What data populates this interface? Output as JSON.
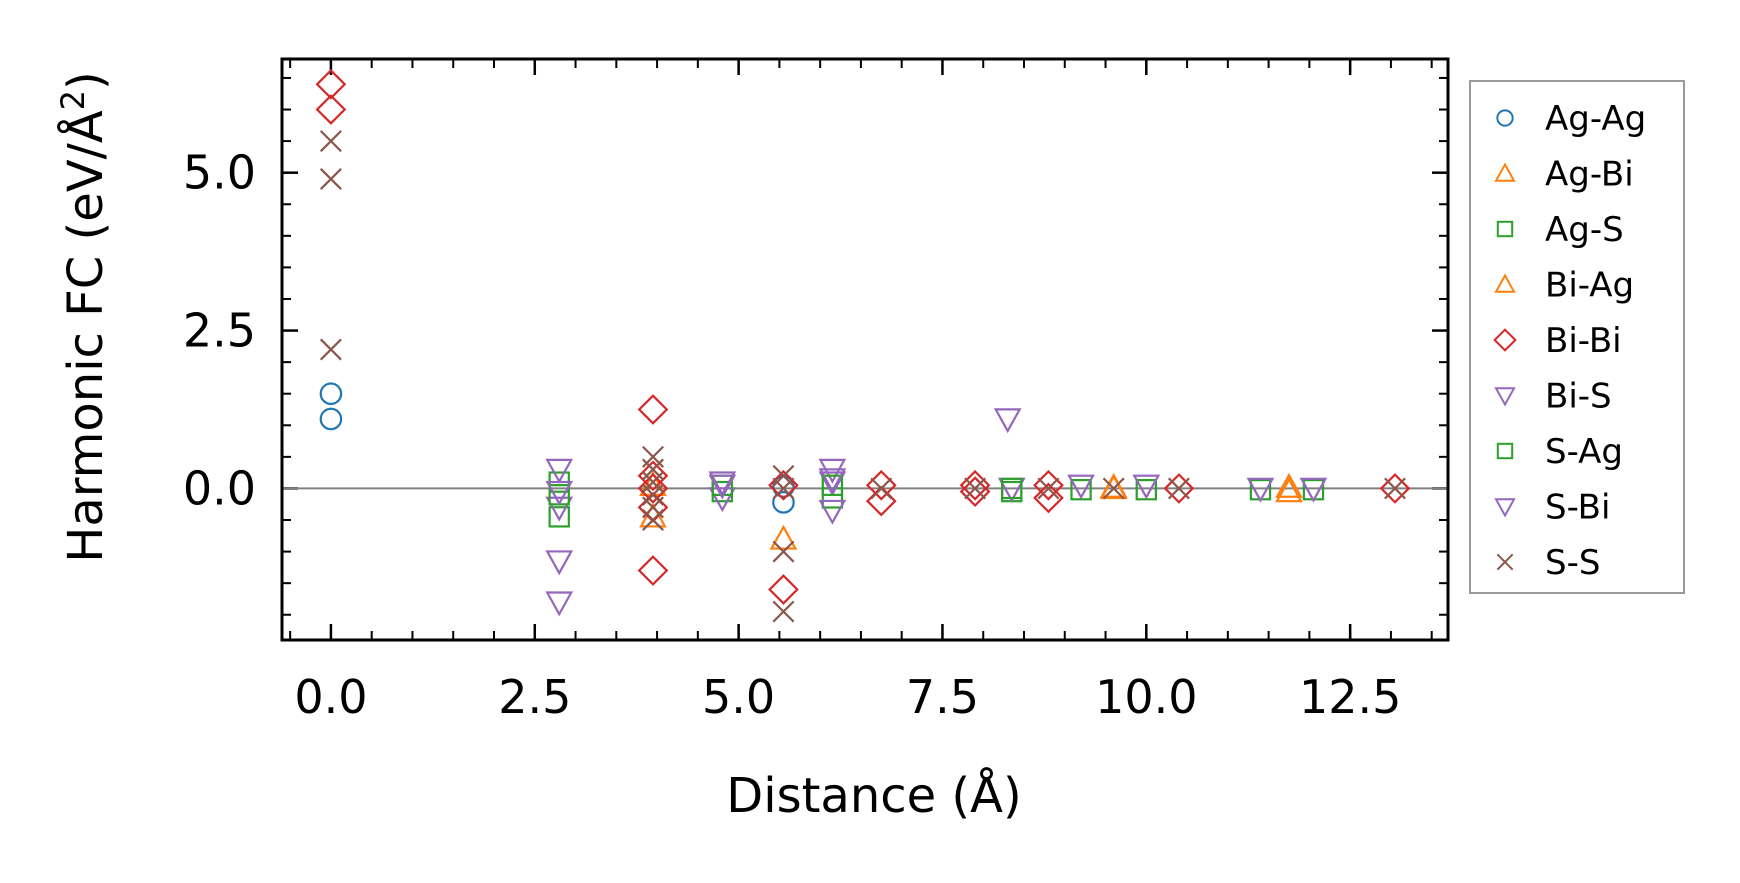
{
  "chart_data": {
    "type": "scatter",
    "title": "",
    "xlabel": "Distance (Å)",
    "ylabel_main": "Harmonic FC (eV/Å",
    "ylabel_sup": "2",
    "ylabel_close": ")",
    "xlim": [
      -0.6,
      13.7
    ],
    "ylim": [
      -2.4,
      6.8
    ],
    "xticks": [
      0.0,
      2.5,
      5.0,
      7.5,
      10.0,
      12.5
    ],
    "xtick_labels": [
      "0.0",
      "2.5",
      "5.0",
      "7.5",
      "10.0",
      "12.5"
    ],
    "yticks": [
      0.0,
      2.5,
      5.0
    ],
    "ytick_labels": [
      "0.0",
      "2.5",
      "5.0"
    ],
    "x_minor_step": 0.5,
    "y_minor_step": 0.5,
    "zero_line": true,
    "legend_position": "outside-right",
    "series": [
      {
        "name": "Ag-Ag",
        "marker": "circle",
        "color": "#1f77b4",
        "points": [
          [
            0,
            1.5
          ],
          [
            0,
            1.1
          ],
          [
            5.55,
            -0.22
          ],
          [
            5.55,
            0.03
          ]
        ]
      },
      {
        "name": "Ag-Bi",
        "marker": "triangle-up",
        "color": "#ff7f0e",
        "points": [
          [
            3.95,
            -0.45
          ],
          [
            5.55,
            -0.8
          ],
          [
            11.75,
            -0.05
          ],
          [
            9.6,
            0.0
          ]
        ]
      },
      {
        "name": "Ag-S",
        "marker": "square",
        "color": "#2ca02c",
        "points": [
          [
            2.8,
            0.1
          ],
          [
            2.8,
            -0.45
          ],
          [
            4.8,
            -0.05
          ],
          [
            6.15,
            -0.15
          ],
          [
            8.35,
            -0.05
          ],
          [
            9.2,
            -0.02
          ],
          [
            10.0,
            -0.02
          ],
          [
            11.4,
            -0.02
          ],
          [
            12.05,
            -0.02
          ]
        ]
      },
      {
        "name": "Bi-Ag",
        "marker": "triangle-up",
        "color": "#ff7f0e",
        "points": [
          [
            3.95,
            0.05
          ],
          [
            9.6,
            0.02
          ],
          [
            11.75,
            0.02
          ]
        ]
      },
      {
        "name": "Bi-Bi",
        "marker": "diamond",
        "color": "#d62728",
        "points": [
          [
            0,
            6.4
          ],
          [
            0,
            6.0
          ],
          [
            3.95,
            1.25
          ],
          [
            3.95,
            0.2
          ],
          [
            3.95,
            0.0
          ],
          [
            3.95,
            -0.3
          ],
          [
            3.95,
            -1.3
          ],
          [
            5.55,
            -1.6
          ],
          [
            5.55,
            0.05
          ],
          [
            6.75,
            0.05
          ],
          [
            6.75,
            -0.2
          ],
          [
            7.9,
            0.05
          ],
          [
            7.9,
            -0.05
          ],
          [
            8.8,
            0.05
          ],
          [
            8.8,
            -0.15
          ],
          [
            10.4,
            0.0
          ],
          [
            13.05,
            0.0
          ]
        ]
      },
      {
        "name": "Bi-S",
        "marker": "triangle-down",
        "color": "#9467bd",
        "points": [
          [
            2.8,
            0.3
          ],
          [
            2.8,
            -0.3
          ],
          [
            2.8,
            -1.15
          ],
          [
            2.8,
            -1.8
          ],
          [
            4.8,
            0.1
          ],
          [
            4.8,
            -0.15
          ],
          [
            6.15,
            0.3
          ],
          [
            6.15,
            0.1
          ],
          [
            6.15,
            -0.35
          ],
          [
            8.3,
            1.1
          ],
          [
            8.35,
            0.0
          ],
          [
            9.2,
            0.05
          ],
          [
            10.0,
            0.05
          ],
          [
            11.4,
            0.0
          ],
          [
            12.05,
            0.0
          ]
        ]
      },
      {
        "name": "S-Ag",
        "marker": "square",
        "color": "#2ca02c",
        "points": [
          [
            2.8,
            -0.1
          ],
          [
            4.8,
            0.05
          ],
          [
            6.15,
            0.05
          ],
          [
            8.35,
            0.0
          ]
        ]
      },
      {
        "name": "S-Bi",
        "marker": "triangle-down",
        "color": "#9467bd",
        "points": [
          [
            2.8,
            -0.05
          ],
          [
            4.8,
            0.05
          ],
          [
            6.15,
            0.15
          ]
        ]
      },
      {
        "name": "S-S",
        "marker": "x",
        "color": "#8c564b",
        "points": [
          [
            0,
            5.5
          ],
          [
            0,
            4.9
          ],
          [
            0,
            2.2
          ],
          [
            3.95,
            0.5
          ],
          [
            3.95,
            0.3
          ],
          [
            3.95,
            0.1
          ],
          [
            3.95,
            -0.1
          ],
          [
            3.95,
            -0.3
          ],
          [
            3.95,
            -0.5
          ],
          [
            5.55,
            0.2
          ],
          [
            5.55,
            0.0
          ],
          [
            5.55,
            -1.0
          ],
          [
            5.55,
            -1.95
          ],
          [
            6.75,
            0.0
          ],
          [
            7.9,
            0.0
          ],
          [
            8.8,
            0.0
          ],
          [
            9.6,
            0.0
          ],
          [
            10.4,
            0.0
          ],
          [
            13.05,
            0.0
          ]
        ]
      }
    ],
    "legend": [
      {
        "label": "Ag-Ag",
        "marker": "circle",
        "color": "#1f77b4"
      },
      {
        "label": "Ag-Bi",
        "marker": "triangle-up",
        "color": "#ff7f0e"
      },
      {
        "label": "Ag-S",
        "marker": "square",
        "color": "#2ca02c"
      },
      {
        "label": "Bi-Ag",
        "marker": "triangle-up",
        "color": "#ff7f0e"
      },
      {
        "label": "Bi-Bi",
        "marker": "diamond",
        "color": "#d62728"
      },
      {
        "label": "Bi-S",
        "marker": "triangle-down",
        "color": "#9467bd"
      },
      {
        "label": "S-Ag",
        "marker": "square",
        "color": "#2ca02c"
      },
      {
        "label": "S-Bi",
        "marker": "triangle-down",
        "color": "#9467bd"
      },
      {
        "label": "S-S",
        "marker": "x",
        "color": "#8c564b"
      }
    ]
  }
}
